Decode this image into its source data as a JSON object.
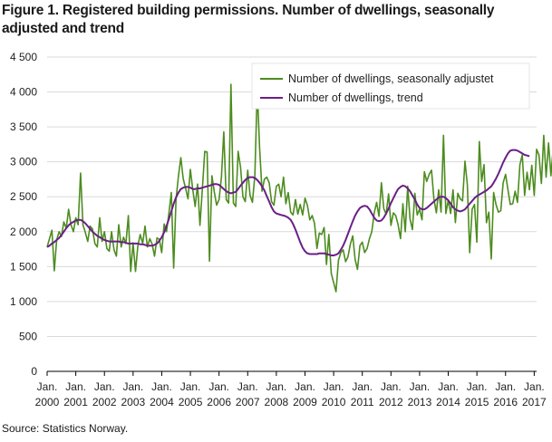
{
  "title": "Figure 1. Registered building permissions. Number of dwellings, seasonally adjusted and trend",
  "source": "Source: Statistics Norway.",
  "colors": {
    "series1": "#4d8c1f",
    "series2": "#6a1f86",
    "grid": "#d9d9d9",
    "axis": "#000000"
  },
  "chart_data": {
    "type": "line",
    "title": "Figure 1. Registered building permissions. Number of dwellings, seasonally adjusted and trend",
    "xlabel": "",
    "ylabel": "",
    "ylim": [
      0,
      4500
    ],
    "y_ticks": [
      {
        "value": 0,
        "label": "0"
      },
      {
        "value": 500,
        "label": "500"
      },
      {
        "value": 1000,
        "label": "1 000"
      },
      {
        "value": 1500,
        "label": "1 500"
      },
      {
        "value": 2000,
        "label": "2 000"
      },
      {
        "value": 2500,
        "label": "2 500"
      },
      {
        "value": 3000,
        "label": "3 000"
      },
      {
        "value": 3500,
        "label": "3 500"
      },
      {
        "value": 4000,
        "label": "4 000"
      },
      {
        "value": 4500,
        "label": "4 500"
      }
    ],
    "x_ticks": [
      {
        "month": 0,
        "top": "Jan.",
        "bottom": "2000"
      },
      {
        "month": 12,
        "top": "Jan.",
        "bottom": "2001"
      },
      {
        "month": 24,
        "top": "Jan.",
        "bottom": "2002"
      },
      {
        "month": 36,
        "top": "Jan.",
        "bottom": "2003"
      },
      {
        "month": 48,
        "top": "Jan.",
        "bottom": "2004"
      },
      {
        "month": 60,
        "top": "Jan.",
        "bottom": "2005"
      },
      {
        "month": 72,
        "top": "Jan.",
        "bottom": "2006"
      },
      {
        "month": 84,
        "top": "Jan.",
        "bottom": "2007"
      },
      {
        "month": 96,
        "top": "Jan.",
        "bottom": "2008"
      },
      {
        "month": 108,
        "top": "Jan.",
        "bottom": "2009"
      },
      {
        "month": 120,
        "top": "Jan.",
        "bottom": "2010"
      },
      {
        "month": 132,
        "top": "Jan.",
        "bottom": "2011"
      },
      {
        "month": 144,
        "top": "Jan.",
        "bottom": "2012"
      },
      {
        "month": 156,
        "top": "Jan.",
        "bottom": "2013"
      },
      {
        "month": 168,
        "top": "Jan.",
        "bottom": "2014"
      },
      {
        "month": 180,
        "top": "Jan.",
        "bottom": "2015"
      },
      {
        "month": 192,
        "top": "Jan.",
        "bottom": "2016"
      },
      {
        "month": 204,
        "top": "Jan.",
        "bottom": "2017"
      }
    ],
    "x_range_months": [
      0,
      205
    ],
    "grid": true,
    "legend_position": "top-right",
    "series": [
      {
        "name": "Number of dwellings, seasonally adjustet",
        "color": "#4d8c1f",
        "values": [
          1780,
          1900,
          2020,
          1440,
          1880,
          2000,
          1930,
          2140,
          2050,
          2320,
          2100,
          2000,
          2200,
          2100,
          2840,
          2100,
          1990,
          1860,
          2080,
          2040,
          1830,
          1780,
          2200,
          1860,
          2000,
          1760,
          1720,
          2000,
          1740,
          1650,
          2100,
          1780,
          1920,
          1830,
          2230,
          1430,
          1840,
          1430,
          1800,
          1960,
          1830,
          2080,
          1780,
          1900,
          1820,
          1650,
          1910,
          1890,
          1700,
          2110,
          2000,
          2260,
          2560,
          1480,
          2460,
          2800,
          3060,
          2760,
          2620,
          2470,
          2890,
          2600,
          2360,
          2680,
          2090,
          2600,
          3150,
          3140,
          1580,
          2800,
          2570,
          2380,
          2460,
          2780,
          3430,
          2460,
          2410,
          4110,
          2410,
          2360,
          3150,
          2920,
          2500,
          2430,
          2880,
          2520,
          2420,
          2810,
          4050,
          3200,
          2580,
          2750,
          2780,
          2700,
          2430,
          2380,
          2650,
          2680,
          2500,
          2780,
          2400,
          2560,
          2280,
          2240,
          2460,
          2250,
          2390,
          2240,
          2480,
          2380,
          2170,
          2230,
          2120,
          1760,
          1980,
          1960,
          2060,
          1530,
          1960,
          1400,
          1270,
          1140,
          1590,
          1700,
          1740,
          1570,
          1640,
          1820,
          1940,
          1600,
          1460,
          1800,
          1850,
          1700,
          1760,
          1900,
          2000,
          2270,
          2420,
          2220,
          2700,
          2330,
          2250,
          2540,
          2090,
          2270,
          2230,
          2100,
          1900,
          2400,
          2000,
          2650,
          2180,
          2030,
          2550,
          2240,
          2320,
          2170,
          2860,
          2720,
          2820,
          2880,
          2470,
          2270,
          2600,
          2280,
          3380,
          2260,
          2450,
          2260,
          2600,
          2130,
          2550,
          2470,
          2440,
          3010,
          2670,
          1700,
          2320,
          2390,
          1850,
          3290,
          2720,
          2960,
          2130,
          2280,
          1610,
          2560,
          2390,
          2280,
          2300,
          2700,
          2820,
          2600,
          2390,
          2400,
          2580,
          2420,
          2960,
          3100,
          2520,
          2850,
          2600,
          2950,
          2520,
          3180,
          3100,
          2690,
          3380,
          2780,
          3270,
          2800,
          3210,
          3470,
          3560,
          3050,
          3130
        ]
      },
      {
        "name": "Number of dwellings, trend",
        "color": "#6a1f86",
        "values": [
          1780,
          1800,
          1830,
          1850,
          1880,
          1910,
          1950,
          2000,
          2050,
          2090,
          2120,
          2140,
          2160,
          2170,
          2170,
          2150,
          2120,
          2080,
          2040,
          2000,
          1970,
          1940,
          1920,
          1900,
          1880,
          1870,
          1860,
          1860,
          1860,
          1860,
          1860,
          1850,
          1850,
          1840,
          1830,
          1830,
          1830,
          1830,
          1830,
          1820,
          1820,
          1810,
          1800,
          1800,
          1800,
          1810,
          1830,
          1870,
          1920,
          1990,
          2080,
          2180,
          2290,
          2400,
          2490,
          2560,
          2610,
          2630,
          2640,
          2640,
          2630,
          2610,
          2610,
          2620,
          2620,
          2630,
          2640,
          2650,
          2660,
          2670,
          2680,
          2680,
          2670,
          2640,
          2610,
          2580,
          2560,
          2550,
          2560,
          2570,
          2610,
          2660,
          2700,
          2740,
          2770,
          2780,
          2780,
          2770,
          2740,
          2700,
          2650,
          2590,
          2510,
          2430,
          2350,
          2290,
          2260,
          2250,
          2240,
          2230,
          2220,
          2200,
          2170,
          2110,
          2030,
          1940,
          1850,
          1770,
          1720,
          1690,
          1680,
          1680,
          1680,
          1680,
          1690,
          1690,
          1690,
          1680,
          1670,
          1660,
          1660,
          1670,
          1690,
          1740,
          1800,
          1880,
          1970,
          2060,
          2150,
          2230,
          2290,
          2340,
          2360,
          2370,
          2360,
          2320,
          2260,
          2200,
          2160,
          2150,
          2160,
          2200,
          2260,
          2330,
          2410,
          2480,
          2550,
          2610,
          2640,
          2660,
          2650,
          2620,
          2580,
          2520,
          2460,
          2390,
          2340,
          2320,
          2320,
          2340,
          2370,
          2400,
          2430,
          2460,
          2490,
          2500,
          2500,
          2480,
          2450,
          2400,
          2350,
          2320,
          2300,
          2290,
          2300,
          2320,
          2360,
          2400,
          2440,
          2480,
          2510,
          2530,
          2550,
          2570,
          2590,
          2620,
          2650,
          2700,
          2760,
          2830,
          2910,
          2990,
          3060,
          3120,
          3160,
          3170,
          3170,
          3160,
          3140,
          3120,
          3100,
          3090,
          3080
        ]
      }
    ]
  }
}
